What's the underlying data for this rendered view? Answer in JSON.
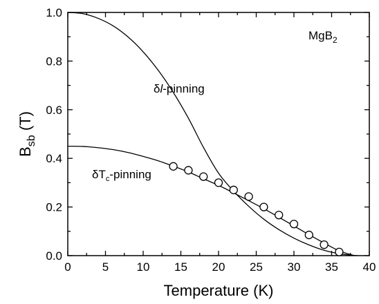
{
  "chart_data": {
    "type": "line",
    "xlabel": "Temperature (K)",
    "ylabel": {
      "main": "B",
      "sub": "sb",
      "unit": " (T)"
    },
    "xlim": [
      0,
      40
    ],
    "ylim": [
      0,
      1.0
    ],
    "x_ticks": [
      0,
      5,
      10,
      15,
      20,
      25,
      30,
      35,
      40
    ],
    "x_tick_labels": [
      "0",
      "5",
      "10",
      "15",
      "20",
      "25",
      "30",
      "35",
      "40"
    ],
    "y_ticks": [
      0.0,
      0.2,
      0.4,
      0.6,
      0.8,
      1.0
    ],
    "y_tick_labels": [
      "0.0",
      "0.2",
      "0.4",
      "0.6",
      "0.8",
      "1.0"
    ],
    "grid": false,
    "legend": "none",
    "annotations": {
      "material": {
        "main": "MgB",
        "sub": "2"
      },
      "delta_l": {
        "prefix": "δ",
        "italic": "l",
        "suffix": "-pinning"
      },
      "delta_tc": {
        "prefix": "δT",
        "sub": "c",
        "suffix": "-pinning"
      }
    },
    "series": [
      {
        "style": "line",
        "x": [
          0,
          2,
          4,
          6,
          8,
          10,
          12,
          14,
          16,
          18,
          20,
          22,
          24,
          26,
          28,
          30,
          32,
          34,
          36,
          38,
          38.5
        ],
        "values": [
          1.0,
          0.995,
          0.976,
          0.945,
          0.899,
          0.838,
          0.762,
          0.671,
          0.565,
          0.445,
          0.339,
          0.265,
          0.203,
          0.15,
          0.107,
          0.072,
          0.044,
          0.022,
          0.008,
          0.001,
          0.0
        ]
      },
      {
        "style": "line",
        "x": [
          0,
          2,
          4,
          6,
          8,
          10,
          12,
          14,
          16,
          18,
          20,
          22,
          24,
          26,
          28,
          30,
          32,
          34,
          36,
          38
        ],
        "values": [
          0.45,
          0.449,
          0.444,
          0.436,
          0.424,
          0.408,
          0.39,
          0.368,
          0.344,
          0.316,
          0.289,
          0.258,
          0.226,
          0.193,
          0.158,
          0.122,
          0.086,
          0.052,
          0.02,
          0.0
        ]
      },
      {
        "style": "markers",
        "x": [
          14,
          16,
          18,
          20,
          22,
          24,
          26,
          28,
          30,
          32,
          34,
          36
        ],
        "values": [
          0.367,
          0.351,
          0.325,
          0.3,
          0.27,
          0.243,
          0.2,
          0.167,
          0.13,
          0.085,
          0.045,
          0.015
        ]
      }
    ]
  }
}
